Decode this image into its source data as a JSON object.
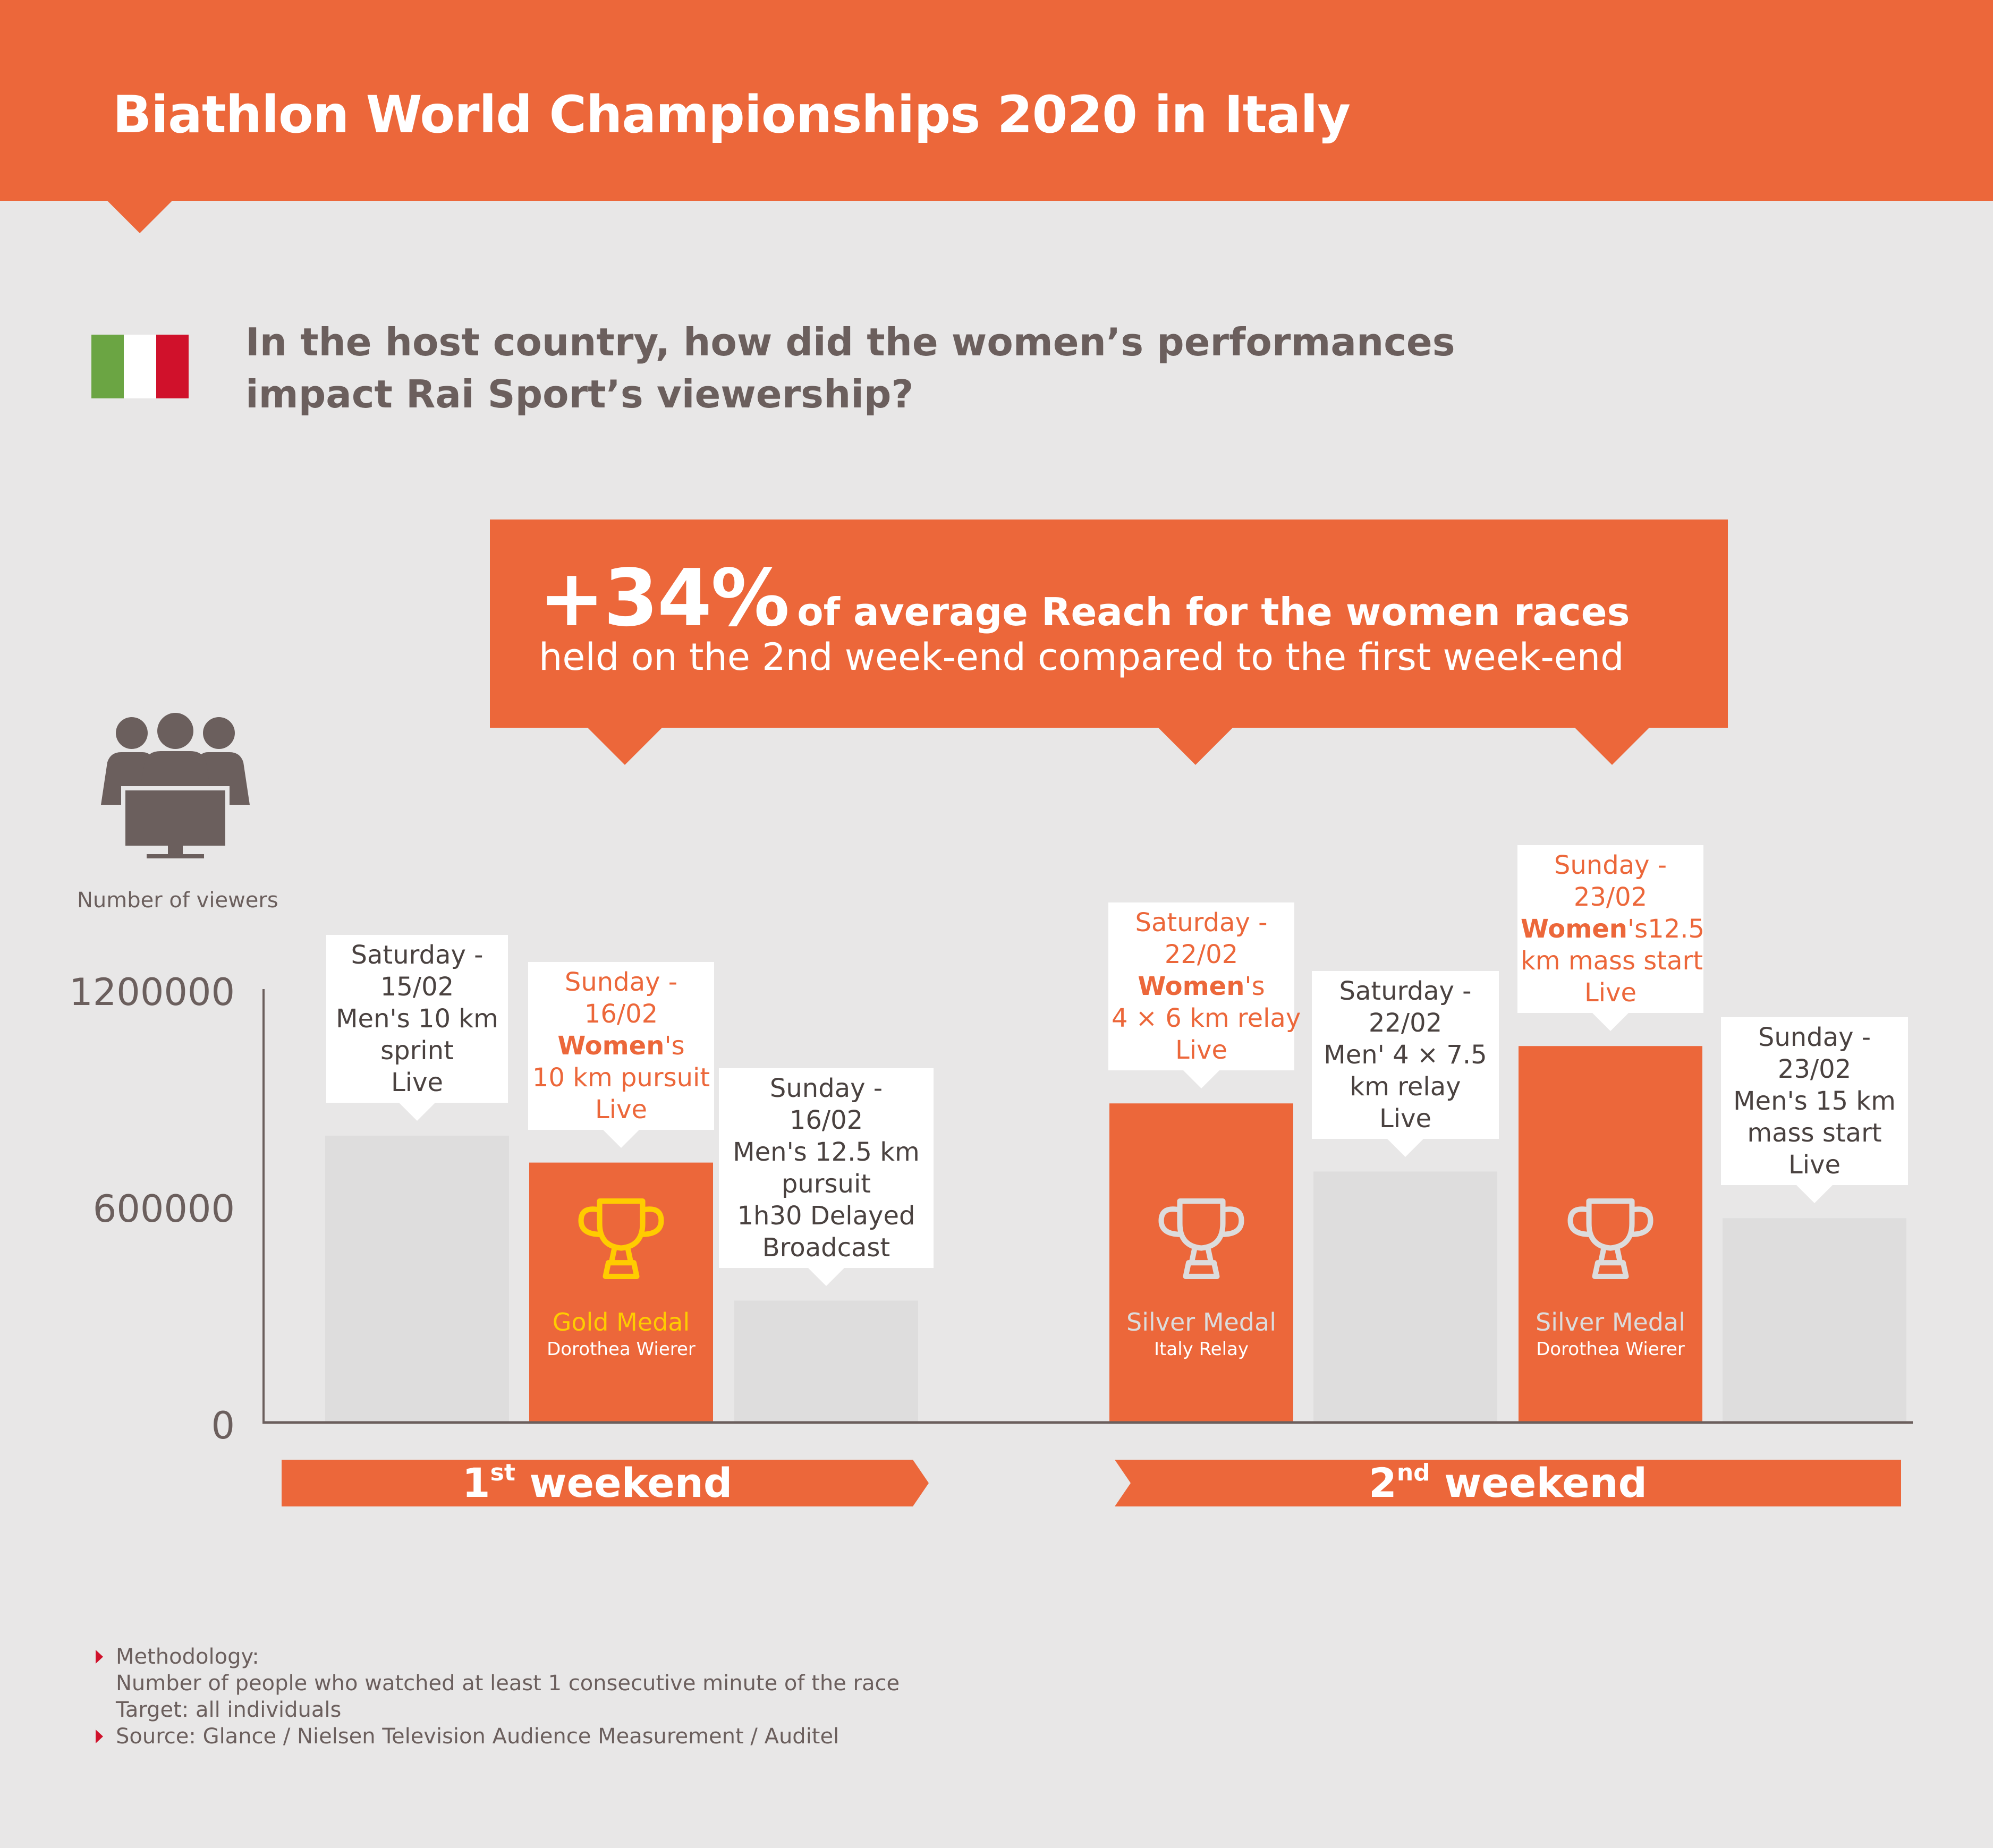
{
  "header": {
    "title": "Biathlon World Championships 2020 in Italy"
  },
  "question": {
    "line1": "In the host country, how did the women’s performances",
    "line2": "impact Rai Sport’s viewership?"
  },
  "callout": {
    "big": "+34%",
    "rest": "of average Reach for the women races",
    "line2": "held on the 2nd week-end compared to the first week-end"
  },
  "colors": {
    "accent": "#ec673a",
    "men_bar": "#dedddd",
    "gold": "#ffcc00",
    "silver": "#dcdcdc",
    "text": "#6b5f5d",
    "flag": [
      "#6ba543",
      "#ffffff",
      "#d0112b"
    ]
  },
  "icons": {
    "viewers": "audience-tv-icon",
    "flag": "italy-flag-icon",
    "medal": "trophy-icon"
  },
  "y_axis": {
    "label": "Number of viewers",
    "ticks": [
      "1200000",
      "600000",
      "0"
    ]
  },
  "chart_data": {
    "type": "bar",
    "ylabel": "Number of viewers",
    "ylim": [
      0,
      1200000
    ],
    "ticks": [
      0,
      600000,
      1200000
    ],
    "grid": false,
    "categories": [
      {
        "day": "Saturday -",
        "date": "15/02",
        "women": false,
        "race_lines": [
          "Men's 10 km",
          "sprint",
          "Live"
        ],
        "value": 800000
      },
      {
        "day": "Sunday -",
        "date": "16/02",
        "women": true,
        "women_suffix": "'s",
        "race_lines": [
          "10 km pursuit",
          "Live"
        ],
        "value": 725000,
        "medal": {
          "type": "Gold Medal",
          "athlete": "Dorothea Wierer"
        }
      },
      {
        "day": "Sunday -",
        "date": "16/02",
        "women": false,
        "race_lines": [
          "Men's 12.5 km",
          "pursuit",
          "1h30 Delayed",
          "Broadcast"
        ],
        "value": 340000
      },
      {
        "day": "Saturday -",
        "date": "22/02",
        "women": true,
        "women_suffix": "'s",
        "race_lines": [
          "4 × 6 km relay",
          "Live"
        ],
        "value": 890000,
        "medal": {
          "type": "Silver Medal",
          "athlete": "Italy Relay"
        }
      },
      {
        "day": "Saturday -",
        "date": "22/02",
        "women": false,
        "race_lines": [
          "Men' 4 × 7.5",
          "km relay",
          "Live"
        ],
        "value": 700000
      },
      {
        "day": "Sunday -",
        "date": "23/02",
        "women": true,
        "women_suffix": "'s12.5",
        "race_lines": [
          "km mass start",
          "Live"
        ],
        "value": 1050000,
        "medal": {
          "type": "Silver Medal",
          "athlete": "Dorothea Wierer"
        }
      },
      {
        "day": "Sunday -",
        "date": "23/02",
        "women": false,
        "race_lines": [
          "Men's 15 km",
          "mass start",
          "Live"
        ],
        "value": 570000
      }
    ],
    "groups": [
      {
        "label": "weekend",
        "sup": "st",
        "num": "1",
        "bars": [
          0,
          1,
          2
        ]
      },
      {
        "label": "weekend",
        "sup": "nd",
        "num": "2",
        "bars": [
          3,
          4,
          5,
          6
        ]
      }
    ]
  },
  "footnotes": {
    "methodology_title": "Methodology:",
    "methodology_line1": "Number of people who watched at least 1 consecutive minute of the race",
    "methodology_line2": "Target: all individuals",
    "source": "Source: Glance / Nielsen Television Audience Measurement / Auditel"
  }
}
